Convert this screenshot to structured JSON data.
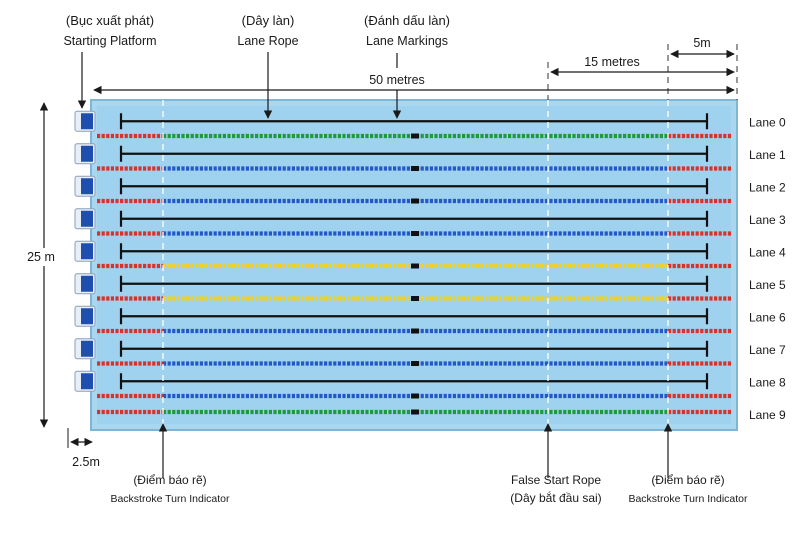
{
  "title_labels": {
    "platform_vi": "(Bục xuất phát)",
    "platform_en": "Starting Platform",
    "rope_vi": "(Dây làn)",
    "rope_en": "Lane Rope",
    "markings_vi": "(Đánh dấu làn)",
    "markings_en": "Lane Markings"
  },
  "dimensions": {
    "length": "50 metres",
    "false_start_distance": "15 metres",
    "backstroke_distance": "5m",
    "width": "25 m",
    "platform_offset": "2.5m"
  },
  "bottom_labels": {
    "backstroke_left_vi": "(Điểm báo rẽ)",
    "backstroke_left_en": "Backstroke Turn Indicator",
    "false_start_en": "False Start Rope",
    "false_start_vi": "(Dây bắt đầu sai)",
    "backstroke_right_vi": "(Điểm báo rẽ)",
    "backstroke_right_en": "Backstroke Turn Indicator"
  },
  "lanes": [
    "Lane 0",
    "Lane 1",
    "Lane 2",
    "Lane 3",
    "Lane 4",
    "Lane 5",
    "Lane 6",
    "Lane 7",
    "Lane 8",
    "Lane 9"
  ],
  "rope_colors": [
    "green",
    "blue",
    "blue",
    "blue",
    "yellow",
    "yellow",
    "blue",
    "blue",
    "blue",
    "green"
  ],
  "colors": {
    "pool_water": "#a9d7f0",
    "pool_border": "#7fb6d6",
    "rope_red": "#d9322b",
    "rope_green": "#1e9a3a",
    "rope_blue": "#2458c7",
    "rope_yellow": "#f2d21c",
    "platform_blue": "#1f4fae",
    "marking_line": "#111111"
  }
}
